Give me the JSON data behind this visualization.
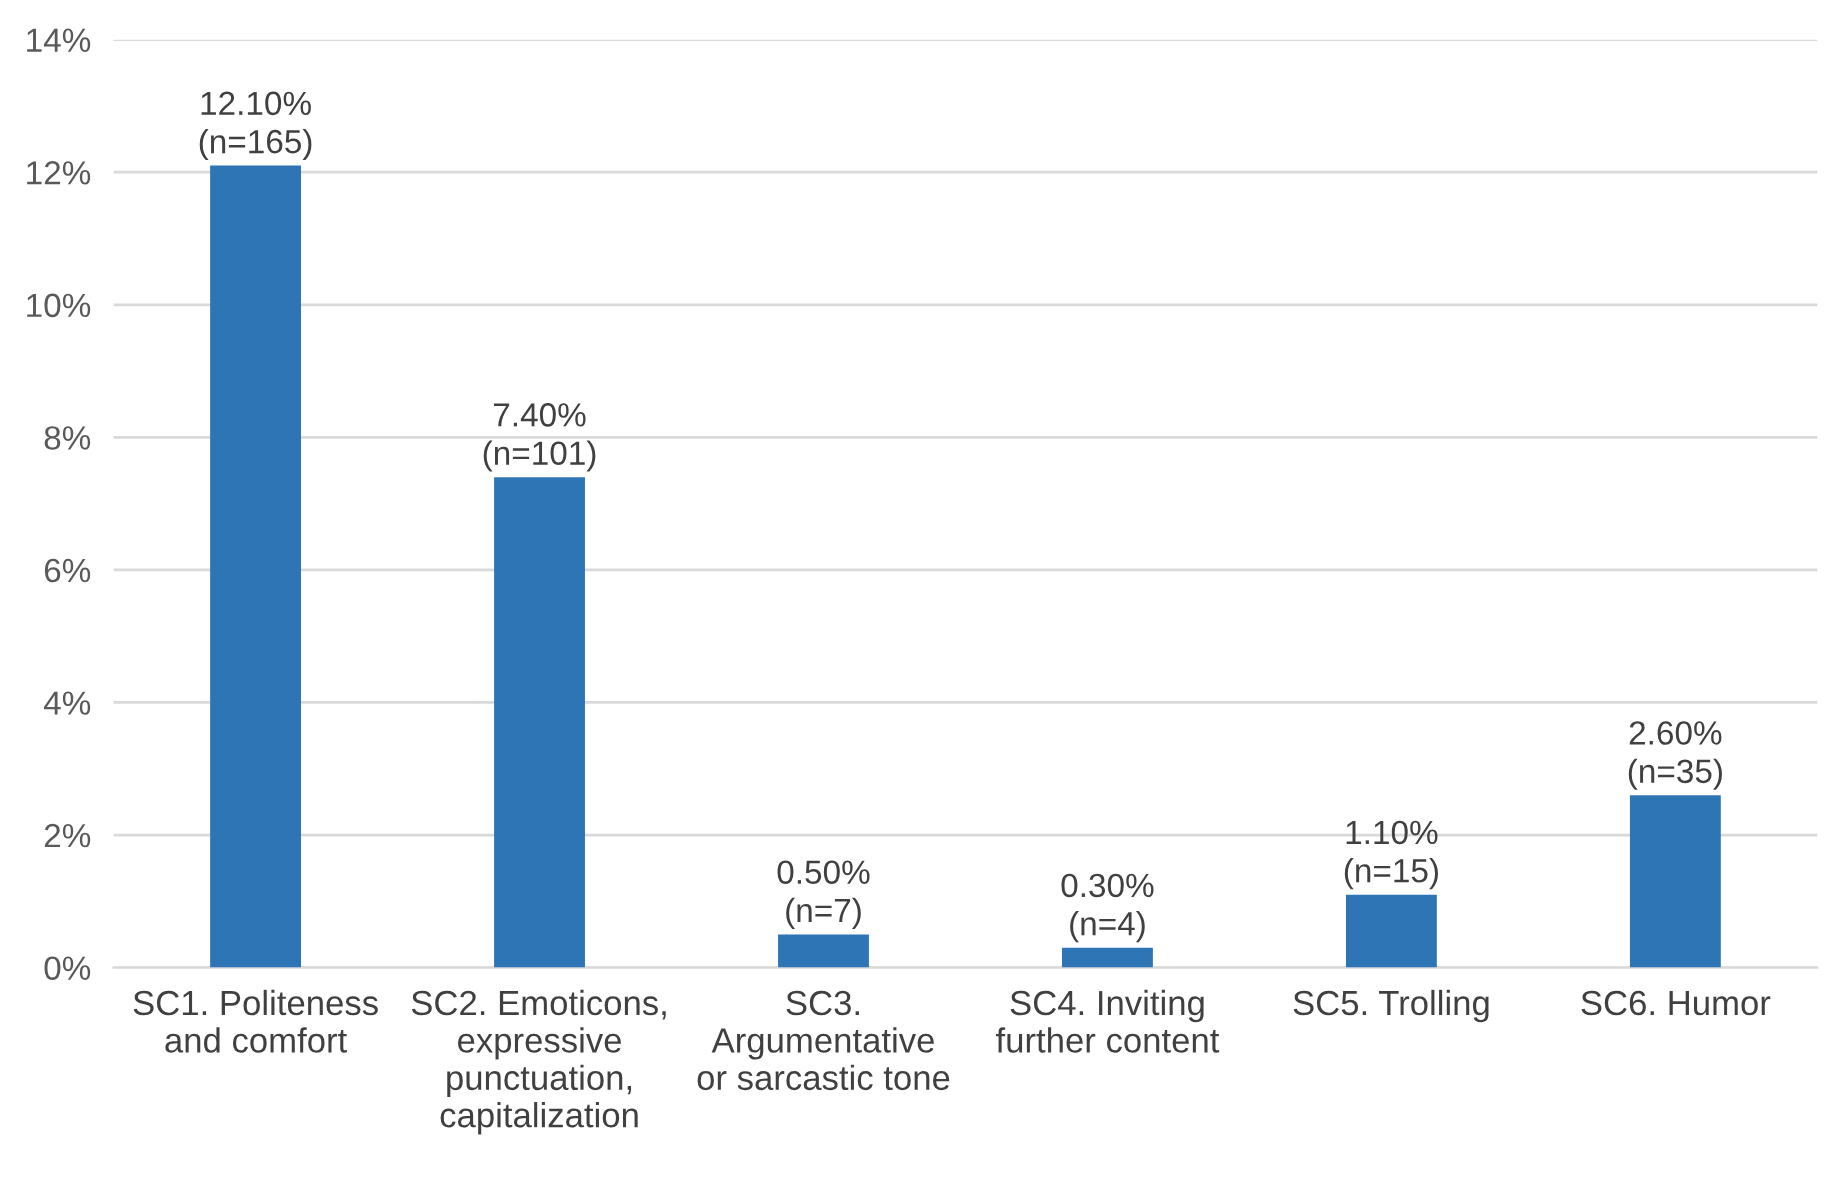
{
  "chart_data": {
    "type": "bar",
    "categories": [
      "SC1. Politeness\nand comfort",
      "SC2. Emoticons,\nexpressive\npunctuation,\ncapitalization",
      "SC3.\nArgumentative\nor sarcastic tone",
      "SC4. Inviting\nfurther content",
      "SC5. Trolling",
      "SC6. Humor"
    ],
    "values": [
      12.1,
      7.4,
      0.5,
      0.3,
      1.1,
      2.6
    ],
    "value_labels": [
      "12.10%\n(n=165)",
      "7.40%\n(n=101)",
      "0.50%\n(n=7)",
      "0.30%\n(n=4)",
      "1.10%\n(n=15)",
      "2.60%\n(n=35)"
    ],
    "color": "#2e75b6",
    "ylim": [
      0,
      14
    ],
    "yticks": [
      {
        "value": 0,
        "label": "0%"
      },
      {
        "value": 2,
        "label": "2%"
      },
      {
        "value": 4,
        "label": "4%"
      },
      {
        "value": 6,
        "label": "6%"
      },
      {
        "value": 8,
        "label": "8%"
      },
      {
        "value": 10,
        "label": "10%"
      },
      {
        "value": 12,
        "label": "12%"
      },
      {
        "value": 14,
        "label": "14%"
      }
    ],
    "grid": "y"
  }
}
